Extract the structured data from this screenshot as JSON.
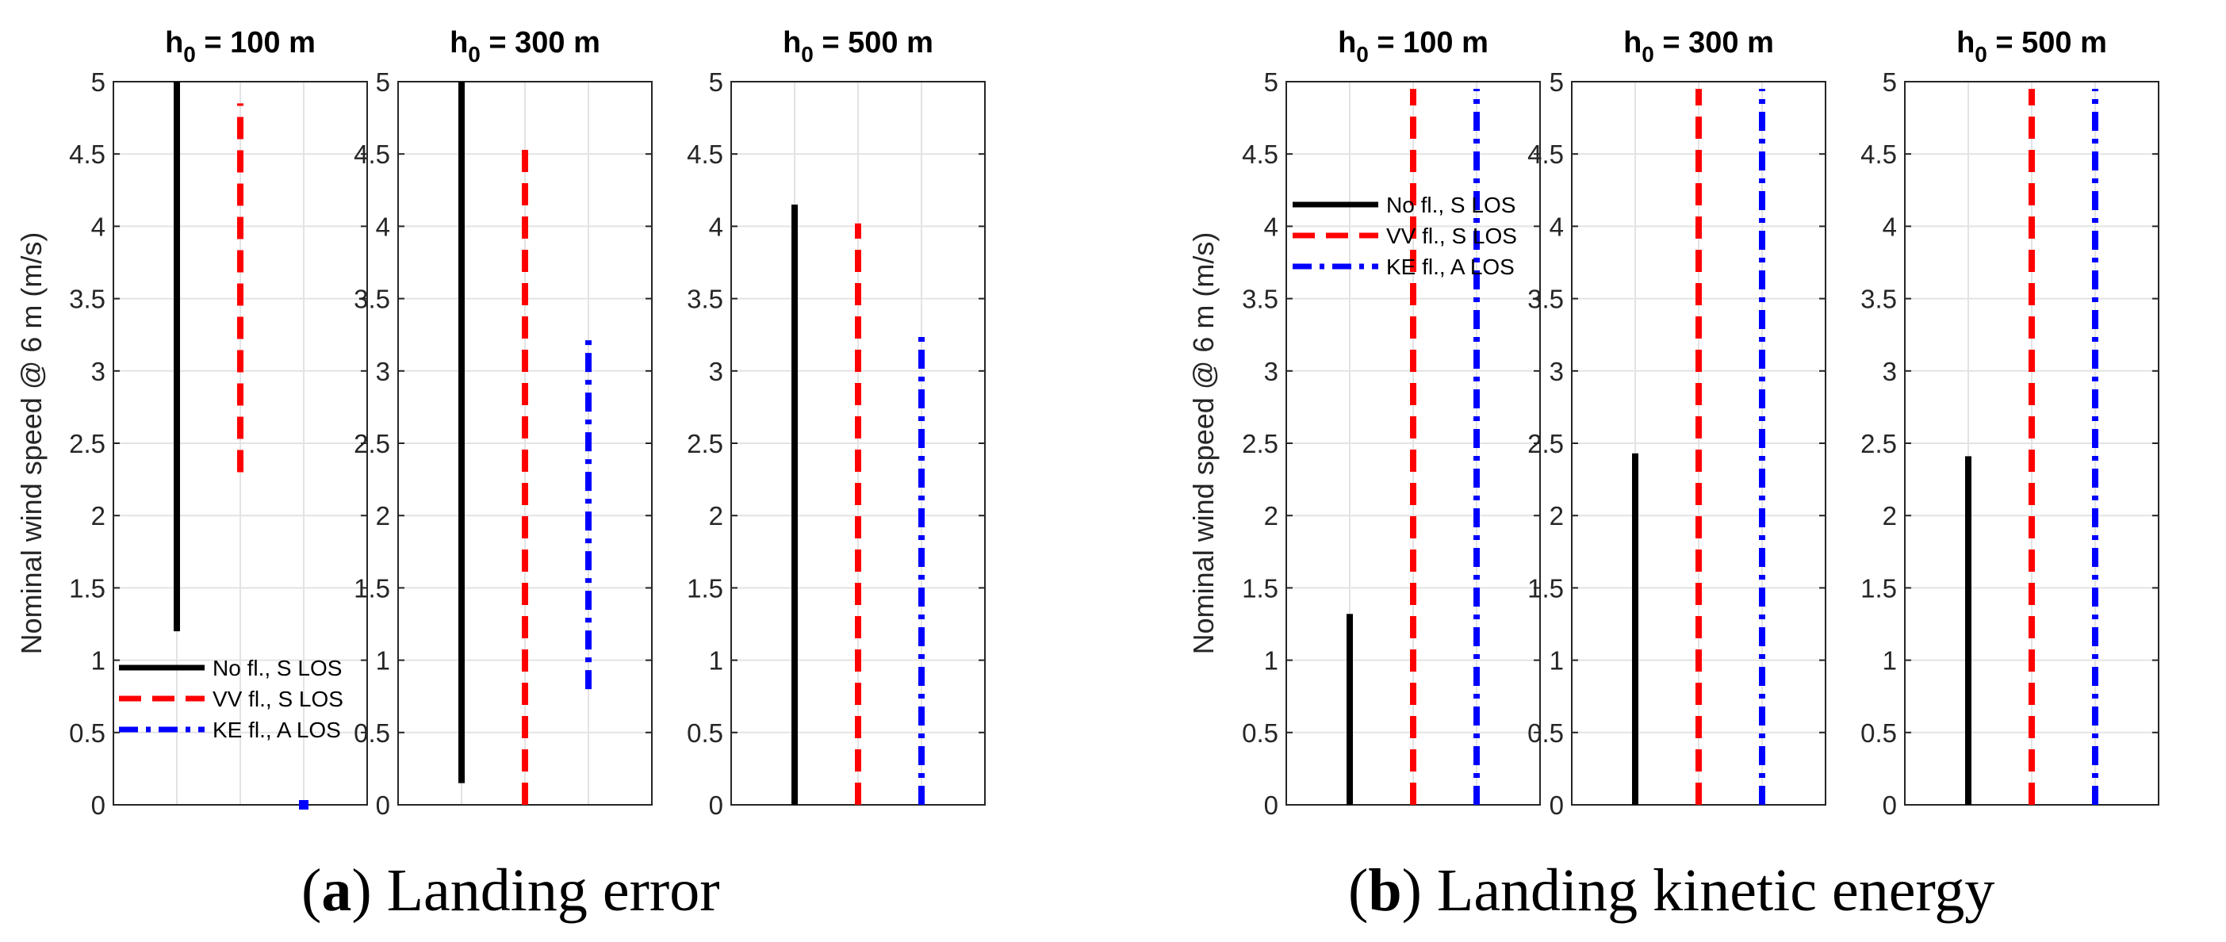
{
  "chart_data": [
    {
      "type": "range-bar",
      "caption": {
        "letter": "a",
        "text": ") Landing error",
        "open": "("
      },
      "ylabel": "Nominal wind speed @ 6 m (m/s)",
      "ylim": [
        0,
        5
      ],
      "yticks": [
        0,
        0.5,
        1,
        1.5,
        2,
        2.5,
        3,
        3.5,
        4,
        4.5,
        5
      ],
      "ytick_labels": [
        "0",
        "0.5",
        "1",
        "1.5",
        "2",
        "2.5",
        "3",
        "3.5",
        "4",
        "4.5",
        "5"
      ],
      "legend": {
        "location": "bottom-left",
        "entries": [
          "No fl., S LOS",
          "VV fl., S LOS",
          "KE fl., A LOS"
        ]
      },
      "series_styles": [
        {
          "name": "No fl., S LOS",
          "color": "#000000",
          "style": "solid"
        },
        {
          "name": "VV fl., S LOS",
          "color": "#ff0000",
          "style": "dashed"
        },
        {
          "name": "KE fl., A LOS",
          "color": "#0000ff",
          "style": "dashdot"
        }
      ],
      "panels": [
        {
          "title_main": "h",
          "title_sub": "0",
          "title_rest": " = 100 m",
          "ranges": [
            [
              1.2,
              5.0
            ],
            [
              2.3,
              4.85
            ],
            [
              0.0,
              0.0
            ]
          ]
        },
        {
          "title_main": "h",
          "title_sub": "0",
          "title_rest": " = 300 m",
          "ranges": [
            [
              0.15,
              5.0
            ],
            [
              0.0,
              4.6
            ],
            [
              0.8,
              3.22
            ]
          ]
        },
        {
          "title_main": "h",
          "title_sub": "0",
          "title_rest": " = 500 m",
          "ranges": [
            [
              0.0,
              4.15
            ],
            [
              0.0,
              4.02
            ],
            [
              0.0,
              3.25
            ]
          ]
        }
      ]
    },
    {
      "type": "range-bar",
      "caption": {
        "letter": "b",
        "text": ") Landing kinetic energy",
        "open": "("
      },
      "ylabel": "Nominal wind speed @ 6 m (m/s)",
      "ylim": [
        0,
        5
      ],
      "yticks": [
        0,
        0.5,
        1,
        1.5,
        2,
        2.5,
        3,
        3.5,
        4,
        4.5,
        5
      ],
      "ytick_labels": [
        "0",
        "0.5",
        "1",
        "1.5",
        "2",
        "2.5",
        "3",
        "3.5",
        "4",
        "4.5",
        "5"
      ],
      "legend": {
        "location": "top-left",
        "entries": [
          "No fl., S LOS",
          "VV fl., S LOS",
          "KE fl., A LOS"
        ]
      },
      "series_styles": [
        {
          "name": "No fl., S LOS",
          "color": "#000000",
          "style": "solid"
        },
        {
          "name": "VV fl., S LOS",
          "color": "#ff0000",
          "style": "dashed"
        },
        {
          "name": "KE fl., A LOS",
          "color": "#0000ff",
          "style": "dashdot"
        }
      ],
      "panels": [
        {
          "title_main": "h",
          "title_sub": "0",
          "title_rest": " = 100 m",
          "ranges": [
            [
              0.0,
              1.32
            ],
            [
              0.0,
              4.95
            ],
            [
              0.0,
              4.95
            ]
          ]
        },
        {
          "title_main": "h",
          "title_sub": "0",
          "title_rest": " = 300 m",
          "ranges": [
            [
              0.0,
              2.43
            ],
            [
              0.0,
              4.95
            ],
            [
              0.0,
              4.95
            ]
          ]
        },
        {
          "title_main": "h",
          "title_sub": "0",
          "title_rest": " = 500 m",
          "ranges": [
            [
              0.0,
              2.41
            ],
            [
              0.0,
              4.95
            ],
            [
              0.0,
              4.95
            ]
          ]
        }
      ]
    }
  ]
}
